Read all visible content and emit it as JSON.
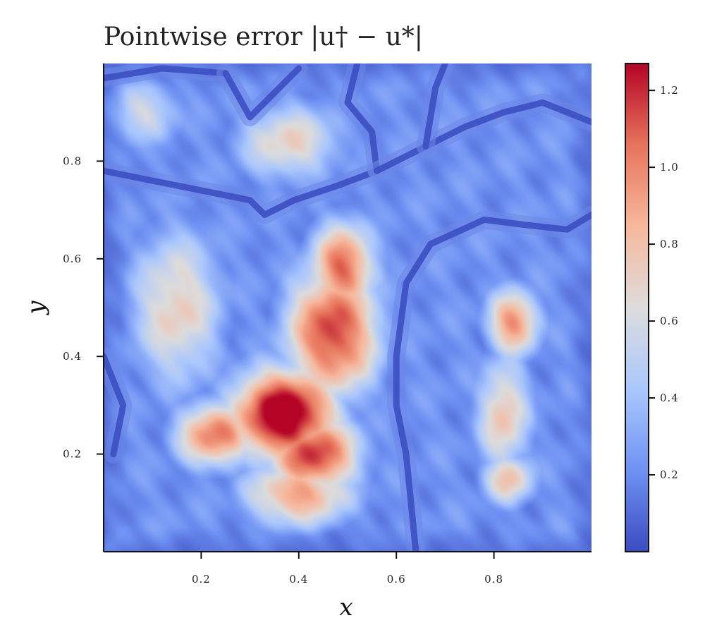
{
  "chart_data": {
    "type": "heatmap",
    "title": "Pointwise error |u† − u*|",
    "xlabel": "x",
    "ylabel": "y",
    "xlim": [
      0,
      1
    ],
    "ylim": [
      0,
      1
    ],
    "x_ticks": [
      {
        "value": 0.2,
        "label": "0.2"
      },
      {
        "value": 0.4,
        "label": "0.4"
      },
      {
        "value": 0.6,
        "label": "0.6"
      },
      {
        "value": 0.8,
        "label": "0.8"
      }
    ],
    "y_ticks": [
      {
        "value": 0.2,
        "label": "0.2"
      },
      {
        "value": 0.4,
        "label": "0.4"
      },
      {
        "value": 0.6,
        "label": "0.6"
      },
      {
        "value": 0.8,
        "label": "0.8"
      }
    ],
    "colorbar": {
      "colormap": "coolwarm",
      "range": [
        0.0,
        1.27
      ],
      "ticks": [
        {
          "value": 0.2,
          "label": "0.2"
        },
        {
          "value": 0.4,
          "label": "0.4"
        },
        {
          "value": 0.6,
          "label": "0.6"
        },
        {
          "value": 0.8,
          "label": "0.8"
        },
        {
          "value": 1.0,
          "label": "1.0"
        },
        {
          "value": 1.2,
          "label": "1.2"
        }
      ],
      "colors": [
        "#3b4cc0",
        "#6f92f3",
        "#aac7fd",
        "#dddcdc",
        "#f7b89c",
        "#e7745b",
        "#b40426"
      ]
    },
    "grid": false,
    "features": [
      {
        "x": 0.37,
        "y": 0.28,
        "value": 1.25,
        "sx": 0.08,
        "sy": 0.07
      },
      {
        "x": 0.43,
        "y": 0.2,
        "value": 1.0,
        "sx": 0.07,
        "sy": 0.06
      },
      {
        "x": 0.47,
        "y": 0.45,
        "value": 1.0,
        "sx": 0.07,
        "sy": 0.1
      },
      {
        "x": 0.49,
        "y": 0.58,
        "value": 0.9,
        "sx": 0.05,
        "sy": 0.07
      },
      {
        "x": 0.23,
        "y": 0.24,
        "value": 0.85,
        "sx": 0.06,
        "sy": 0.05
      },
      {
        "x": 0.4,
        "y": 0.12,
        "value": 0.75,
        "sx": 0.08,
        "sy": 0.05
      },
      {
        "x": 0.84,
        "y": 0.47,
        "value": 0.8,
        "sx": 0.04,
        "sy": 0.05
      },
      {
        "x": 0.82,
        "y": 0.28,
        "value": 0.6,
        "sx": 0.04,
        "sy": 0.09
      },
      {
        "x": 0.83,
        "y": 0.15,
        "value": 0.6,
        "sx": 0.04,
        "sy": 0.04
      },
      {
        "x": 0.15,
        "y": 0.5,
        "value": 0.55,
        "sx": 0.07,
        "sy": 0.12
      },
      {
        "x": 0.38,
        "y": 0.84,
        "value": 0.52,
        "sx": 0.08,
        "sy": 0.06
      },
      {
        "x": 0.08,
        "y": 0.9,
        "value": 0.4,
        "sx": 0.06,
        "sy": 0.05
      }
    ],
    "valleys": [
      [
        [
          0.0,
          0.78
        ],
        [
          0.1,
          0.76
        ],
        [
          0.2,
          0.74
        ],
        [
          0.3,
          0.72
        ],
        [
          0.33,
          0.69
        ],
        [
          0.39,
          0.72
        ],
        [
          0.48,
          0.75
        ],
        [
          0.56,
          0.78
        ]
      ],
      [
        [
          0.56,
          0.78
        ],
        [
          0.55,
          0.86
        ],
        [
          0.5,
          0.92
        ],
        [
          0.52,
          1.0
        ]
      ],
      [
        [
          0.0,
          0.97
        ],
        [
          0.12,
          0.99
        ],
        [
          0.25,
          0.98
        ]
      ],
      [
        [
          0.25,
          0.98
        ],
        [
          0.3,
          0.89
        ],
        [
          0.4,
          0.99
        ]
      ],
      [
        [
          0.56,
          0.78
        ],
        [
          0.66,
          0.83
        ],
        [
          0.74,
          0.87
        ],
        [
          0.82,
          0.9
        ],
        [
          0.9,
          0.92
        ],
        [
          1.0,
          0.88
        ]
      ],
      [
        [
          0.66,
          0.83
        ],
        [
          0.68,
          0.95
        ],
        [
          0.7,
          1.0
        ]
      ],
      [
        [
          0.64,
          0.0
        ],
        [
          0.63,
          0.1
        ],
        [
          0.62,
          0.2
        ],
        [
          0.6,
          0.3
        ],
        [
          0.6,
          0.4
        ],
        [
          0.62,
          0.55
        ],
        [
          0.67,
          0.63
        ],
        [
          0.78,
          0.68
        ],
        [
          0.86,
          0.67
        ],
        [
          0.95,
          0.66
        ],
        [
          1.0,
          0.69
        ]
      ],
      [
        [
          0.0,
          0.4
        ],
        [
          0.04,
          0.3
        ],
        [
          0.02,
          0.2
        ]
      ]
    ]
  }
}
